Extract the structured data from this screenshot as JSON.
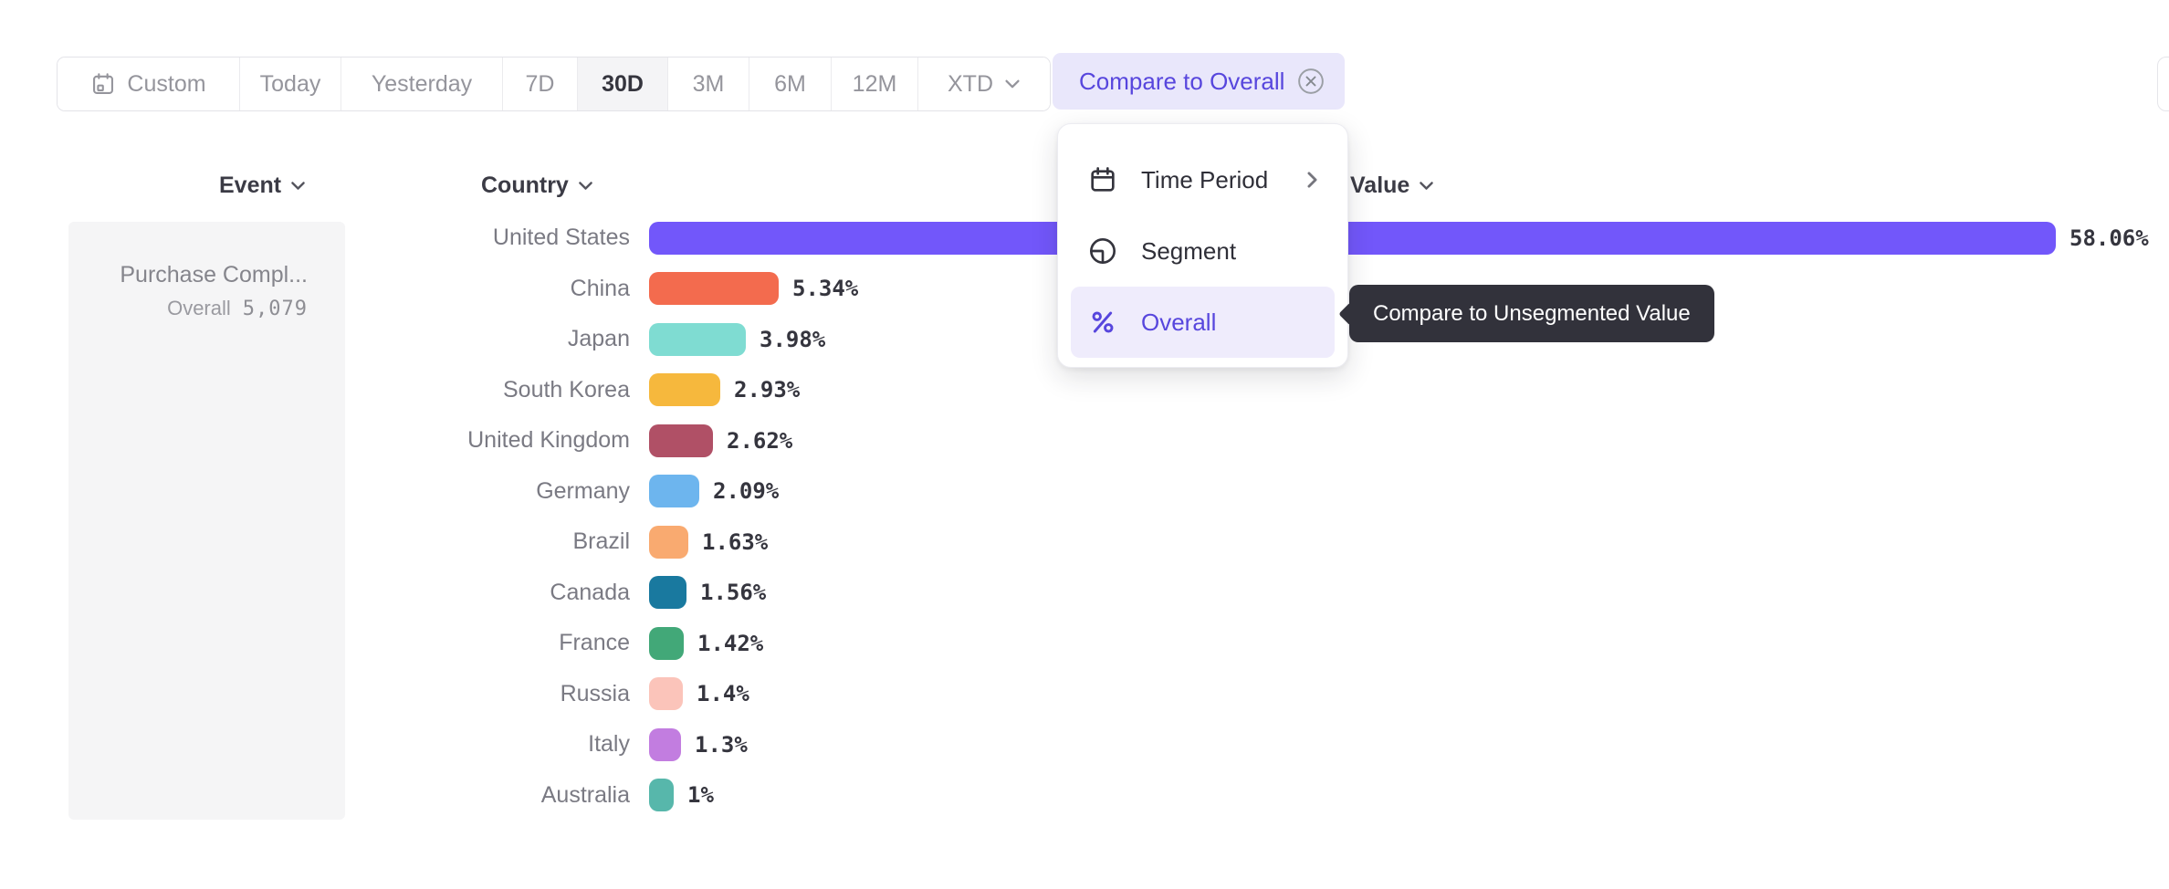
{
  "toolbar": {
    "buttons": [
      {
        "label": "Custom",
        "icon": "calendar-icon",
        "active": false
      },
      {
        "label": "Today",
        "active": false
      },
      {
        "label": "Yesterday",
        "active": false
      },
      {
        "label": "7D",
        "active": false
      },
      {
        "label": "30D",
        "active": true
      },
      {
        "label": "3M",
        "active": false
      },
      {
        "label": "6M",
        "active": false
      },
      {
        "label": "12M",
        "active": false
      },
      {
        "label": "XTD",
        "active": false,
        "has_dropdown": true
      }
    ]
  },
  "compare_chip": {
    "label": "Compare to Overall",
    "close_icon": "circle-x-icon"
  },
  "headers": {
    "event": "Event",
    "country": "Country",
    "value": "Value"
  },
  "event_panel": {
    "event_name": "Purchase Compl...",
    "overall_label": "Overall",
    "overall_value": "5,079"
  },
  "menu": {
    "items": [
      {
        "icon": "calendar-icon",
        "label": "Time Period",
        "has_submenu": true,
        "selected": false
      },
      {
        "icon": "segment-icon",
        "label": "Segment",
        "has_submenu": false,
        "selected": false
      },
      {
        "icon": "percent-icon",
        "label": "Overall",
        "has_submenu": false,
        "selected": true
      }
    ]
  },
  "tooltip": {
    "text": "Compare to Unsegmented Value"
  },
  "chart_data": {
    "type": "bar",
    "orientation": "horizontal",
    "title": "",
    "xlabel": "Value (%)",
    "ylabel": "Country",
    "xlim": [
      0,
      60
    ],
    "grid": false,
    "categories": [
      "United States",
      "China",
      "Japan",
      "South Korea",
      "United Kingdom",
      "Germany",
      "Brazil",
      "Canada",
      "France",
      "Russia",
      "Italy",
      "Australia"
    ],
    "values": [
      58.06,
      5.34,
      3.98,
      2.93,
      2.62,
      2.09,
      1.63,
      1.56,
      1.42,
      1.4,
      1.3,
      1
    ],
    "value_labels": [
      "58.06%",
      "5.34%",
      "3.98%",
      "2.93%",
      "2.62%",
      "2.09%",
      "1.63%",
      "1.56%",
      "1.42%",
      "1.4%",
      "1.3%",
      "1%"
    ],
    "colors": [
      "#7257fa",
      "#f36b4e",
      "#7fdcd2",
      "#f6b83d",
      "#b05066",
      "#6db5ee",
      "#f9aa70",
      "#19799f",
      "#42a878",
      "#fbc4ba",
      "#c27de0",
      "#57b7ab"
    ]
  },
  "colors": {
    "accent": "#5746dd",
    "chip_bg": "#e9e7fb",
    "menu_highlight_bg": "#efecfc",
    "tooltip_bg": "#32323b",
    "panel_bg": "#f5f5f6",
    "toolbar_active_bg": "#f4f4f6",
    "label_gray": "#7a7a83",
    "value_dark": "#35353e"
  }
}
